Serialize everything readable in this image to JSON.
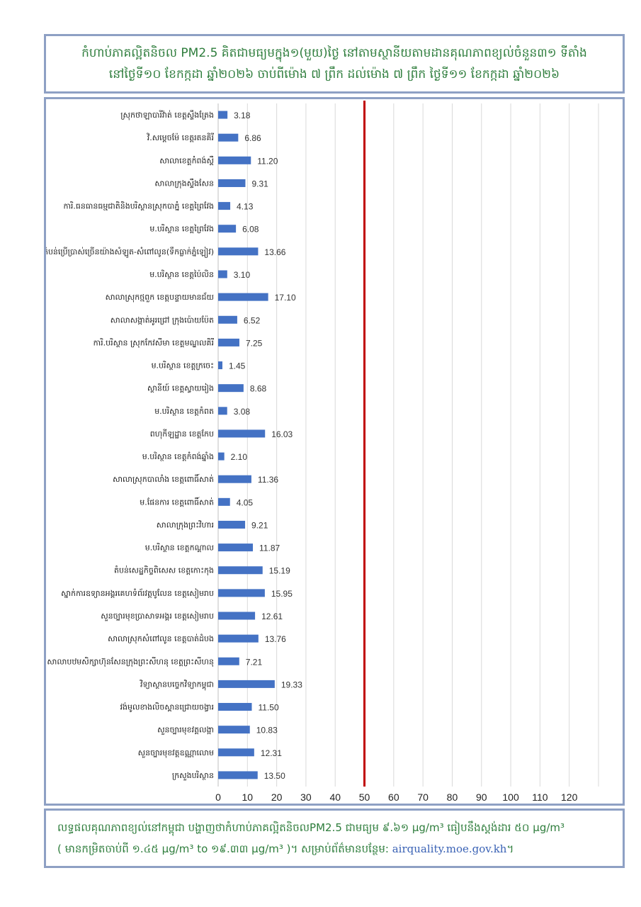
{
  "header": {
    "line1": "កំហាប់ភាគល្អិតនិចល PM2.5 គិតជាមធ្យមក្នុង១(មួយ)ថ្ងៃ នៅតាមស្ថានីយតាមដានគុណភាពខ្យល់ចំនួន៣១ ទីតាំង",
    "line2": "នៅថ្ងៃទី១០ ខែកក្កដា ឆ្នាំ២០២៦ ចាប់ពីម៉ោង ៧ ព្រឹក ដល់ម៉ោង ៧ ព្រឹក ថ្ងៃទី១១ ខែកក្កដា ឆ្នាំ២០២៦"
  },
  "footer": {
    "line1": "លទ្ធផលគុណភាពខ្យល់នៅកម្ពុជា បង្ហាញថាកំហាប់ភាគល្អិតនិចលPM2.5 ជាមធ្យម ៩.៦១ µg/m³ ធៀបនឹងស្តង់ដារ ៥០ µg/m³",
    "line2": "( មានកម្រិតចាប់ពី ១.៤៥ µg/m³ to ១៩.៣៣ µg/m³ )។ សម្រាប់ព័ត៌មានបន្ថែម: ",
    "link": "airquality.moe.gov.kh",
    "end": "។"
  },
  "colors": {
    "bar": "#4472c4",
    "limit_line": "#c00000",
    "grid": "#d9d9d9",
    "border": "#8ea0c4",
    "text_green": "#2e7d3c"
  },
  "chart_data": {
    "type": "bar",
    "orientation": "horizontal",
    "categories": [
      "ស្រុកថាឡាបារីវ៉ាត់ ខេត្តស្ទឹងត្រែង",
      "វិ.សម្តេចម៉ែ ខេត្តរតនគិរី",
      "សាលាខេត្តកំពង់ស្ពឺ",
      "សាលាក្រុងស្ទឹងសែន",
      "ការិ.ធនធានធម្មជាតិនិងបរិស្ថានស្រុកបាភ្នំ ខេត្តព្រៃវែង",
      "ម.បរិស្ថាន ខេត្តព្រៃវែង",
      "ស្នាក់ការតំបន់ប្រើប្រាស់ច្រើនយ៉ាងសំឡូត-សំពៅលូន(ទឹកធ្លាក់ភ្នំឡៀវ)",
      "ម.បរិស្ថាន ខេត្តប៉ៃលិន",
      "សាលាស្រុកថ្មពួក ខេត្តបន្ទាយមានជ័យ",
      "សាលាសង្កាត់អូរជ្រៅ ក្រុងប៉ោយប៉ែត",
      "ការិ.បរិស្ថាន ស្រុកកែវសីមា ខេត្តមណ្ឌលគិរី",
      "ម.បរិស្ថាន ខេត្តក្រចេះ",
      "ស្ថានីយ៍ ខេត្តស្វាយរៀង",
      "ម.បរិស្ថាន ខេត្តកំពត",
      "ពហុកីឡដ្ឋាន ខេត្តកែប",
      "ម.បរិស្ថាន ខេត្តកំពង់ឆ្នាំង",
      "សាលាស្រុកបាលាំង ខេត្តពោធិ៍សាត់",
      "ម.ផែនការ ខេត្តពោធិ៍សាត់",
      "សាលាក្រុងព្រះវិហារ",
      "ម.បរិស្ថាន ខេត្តកណ្តាល",
      "តំបន់សេដ្ឋកិច្ចពិសេស ខេត្តកោះកុង",
      "ស្នាក់ការឧទ្យានអង្គរគេហទំព័រវត្តបូលែន ខេត្តសៀមរាប",
      "សួនច្បារមុខប្រាសាទអង្គរ ខេត្តសៀមរាប",
      "សាលាស្រុកសំពៅលូន ខេត្តបាត់ដំបង",
      "សាលាបឋមសិក្សាហ៊ុនសែនក្រុងព្រះសីហនុ ខេត្តព្រះសីហនុ",
      "វិទ្យាស្ថានបច្ចេកវិទ្យាកម្ពុជា",
      "វង់មូលខាងលិចស្ពានជ្រោយចង្វារ",
      "សួនច្បារមុខវត្តលង្កា",
      "សួនច្បារមុខវត្តឧណ្ណាលោម",
      "ក្រសួងបរិស្ថាន"
    ],
    "values": [
      3.18,
      6.86,
      11.2,
      9.31,
      4.13,
      6.08,
      13.66,
      3.1,
      17.1,
      6.52,
      7.25,
      1.45,
      8.68,
      3.08,
      16.03,
      2.1,
      11.36,
      4.05,
      9.21,
      11.87,
      15.19,
      15.95,
      12.61,
      13.76,
      7.21,
      19.33,
      11.5,
      10.83,
      12.31,
      13.5
    ],
    "value_labels": [
      "3.18",
      "6.86",
      "11.20",
      "9.31",
      "4.13",
      "6.08",
      "13.66",
      "3.10",
      "17.10",
      "6.52",
      "7.25",
      "1.45",
      "8.68",
      "3.08",
      "16.03",
      "2.10",
      "11.36",
      "4.05",
      "9.21",
      "11.87",
      "15.19",
      "15.95",
      "12.61",
      "13.76",
      "7.21",
      "19.33",
      "11.50",
      "10.83",
      "12.31",
      "13.50"
    ],
    "xlim": [
      0,
      130
    ],
    "x_ticks": [
      0,
      10,
      20,
      30,
      40,
      50,
      60,
      70,
      80,
      90,
      100,
      110,
      120
    ],
    "reference_line": 50,
    "grid": true,
    "legend": "none"
  }
}
